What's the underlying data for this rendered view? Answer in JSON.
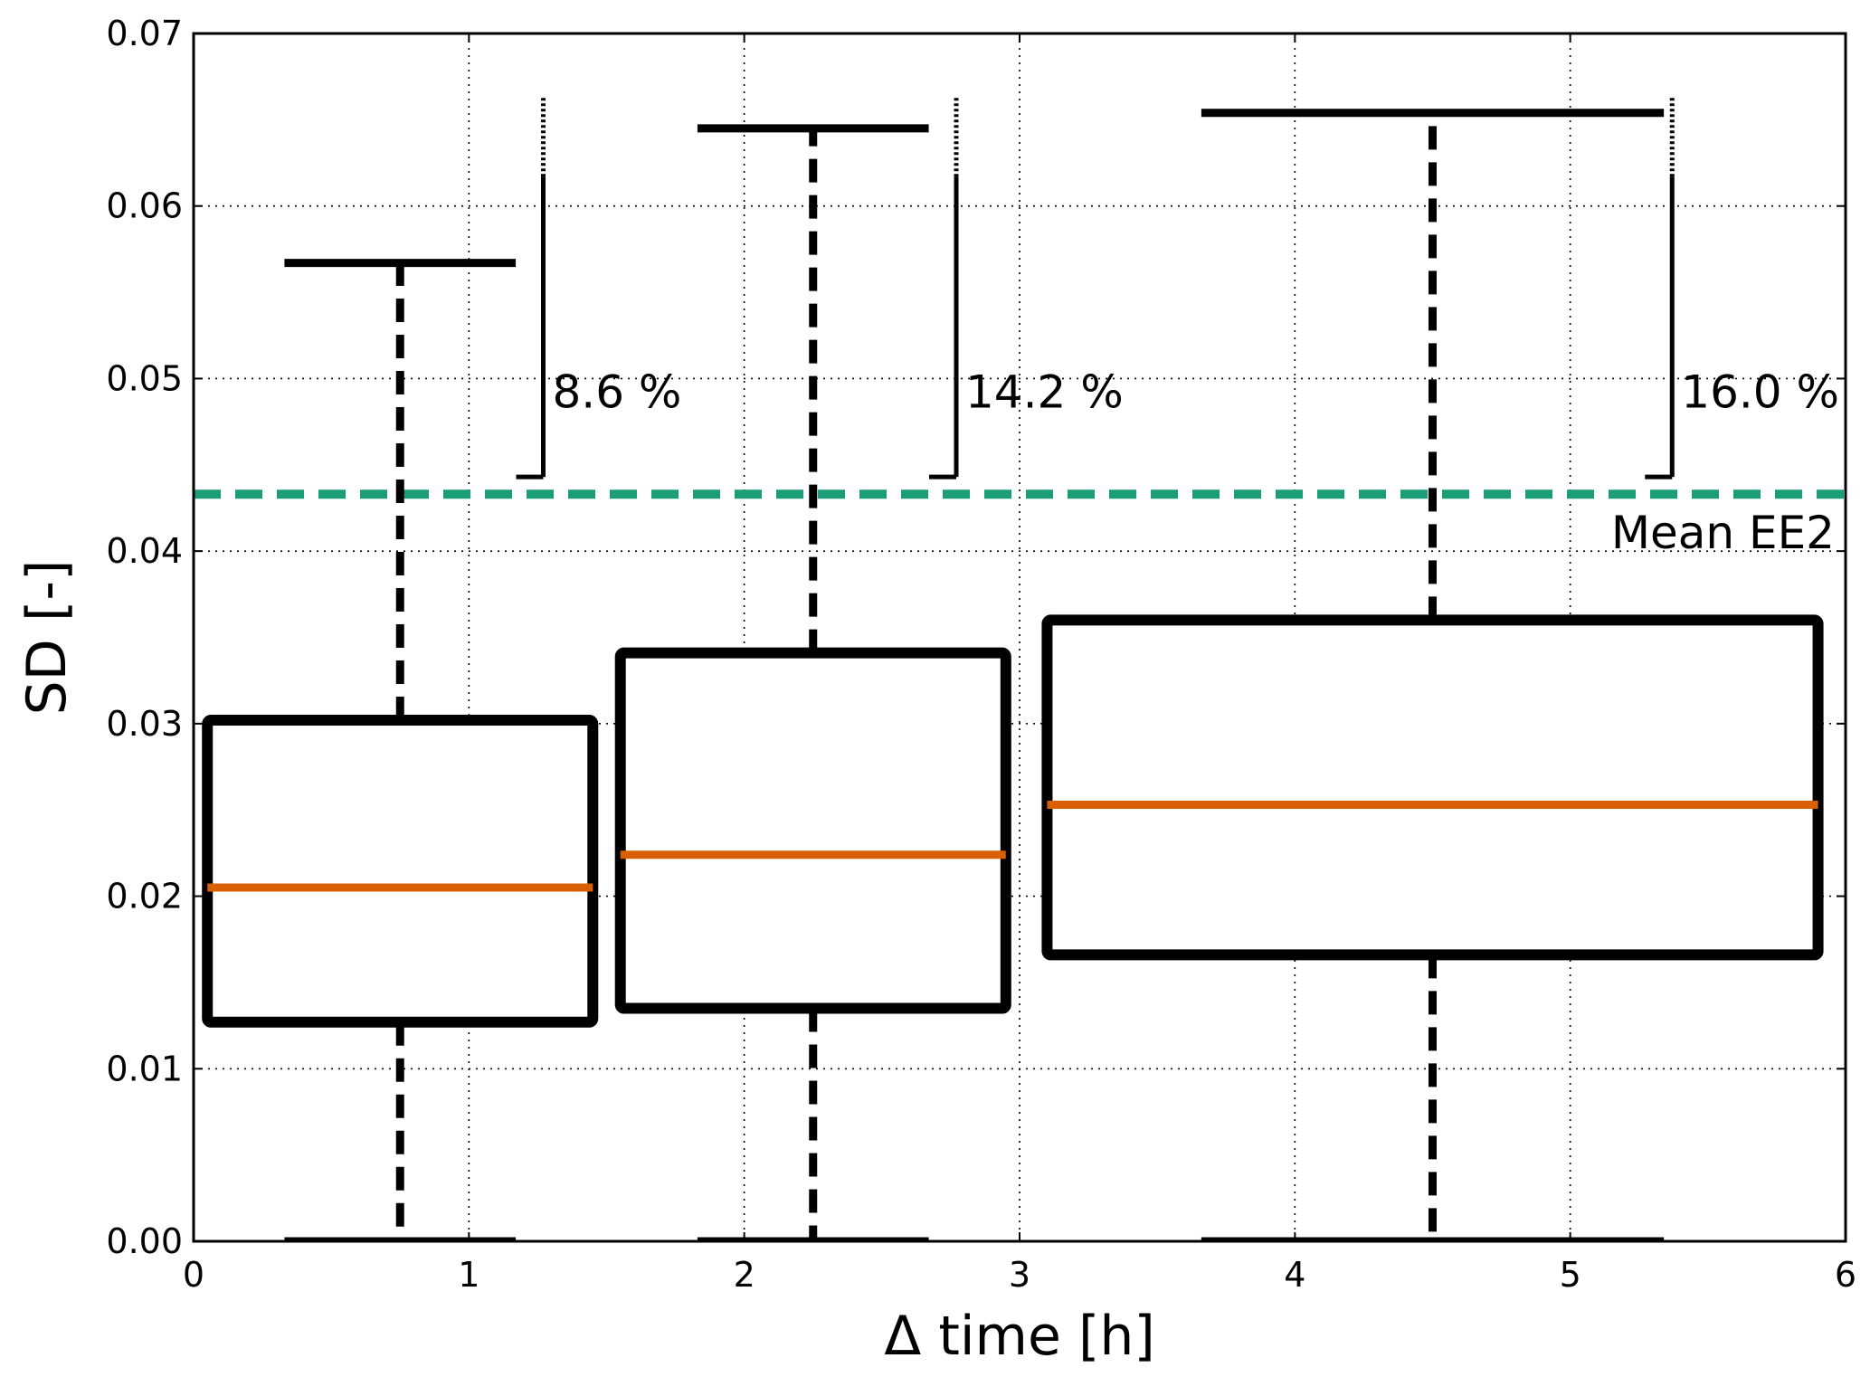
{
  "chart_data": {
    "type": "box",
    "xlabel": "Δ time [h]",
    "ylabel": "SD [-]",
    "xlim": [
      0,
      6
    ],
    "ylim": [
      0,
      0.07
    ],
    "xticks": [
      0,
      1,
      2,
      3,
      4,
      5,
      6
    ],
    "xtick_labels": [
      "0",
      "1",
      "2",
      "3",
      "4",
      "5",
      "6"
    ],
    "yticks": [
      0,
      0.01,
      0.02,
      0.03,
      0.04,
      0.05,
      0.06,
      0.07
    ],
    "ytick_labels": [
      "0.00",
      "0.01",
      "0.02",
      "0.03",
      "0.04",
      "0.05",
      "0.06",
      "0.07"
    ],
    "grid": true,
    "boxes": [
      {
        "position": 0.75,
        "x_range": [
          0.05,
          1.45
        ],
        "whisker_low": 0.0,
        "q1": 0.0127,
        "median": 0.0205,
        "q3": 0.0302,
        "whisker_high": 0.0567,
        "percent_label": "8.6 %"
      },
      {
        "position": 2.25,
        "x_range": [
          1.55,
          2.95
        ],
        "whisker_low": 0.0,
        "q1": 0.0135,
        "median": 0.0224,
        "q3": 0.0341,
        "whisker_high": 0.0645,
        "percent_label": "14.2 %"
      },
      {
        "position": 4.5,
        "x_range": [
          3.1,
          5.9
        ],
        "whisker_low": 0.0,
        "q1": 0.0166,
        "median": 0.0253,
        "q3": 0.036,
        "whisker_high": 0.0654,
        "percent_label": "16.0 %"
      }
    ],
    "brackets": [
      {
        "x": 1.27,
        "y_low": 0.0443,
        "y_solid_top": 0.0617,
        "y_dotted_top": 0.0663
      },
      {
        "x": 2.77,
        "y_low": 0.0443,
        "y_solid_top": 0.0617,
        "y_dotted_top": 0.0663
      },
      {
        "x": 5.37,
        "y_low": 0.0443,
        "y_solid_top": 0.0617,
        "y_dotted_top": 0.0663
      }
    ],
    "reference_line": {
      "value": 0.0433,
      "label": "Mean EE2",
      "color": "#1b9e77"
    },
    "colors": {
      "box": "#000000",
      "median": "#d95f02",
      "whisker": "#000000"
    }
  }
}
